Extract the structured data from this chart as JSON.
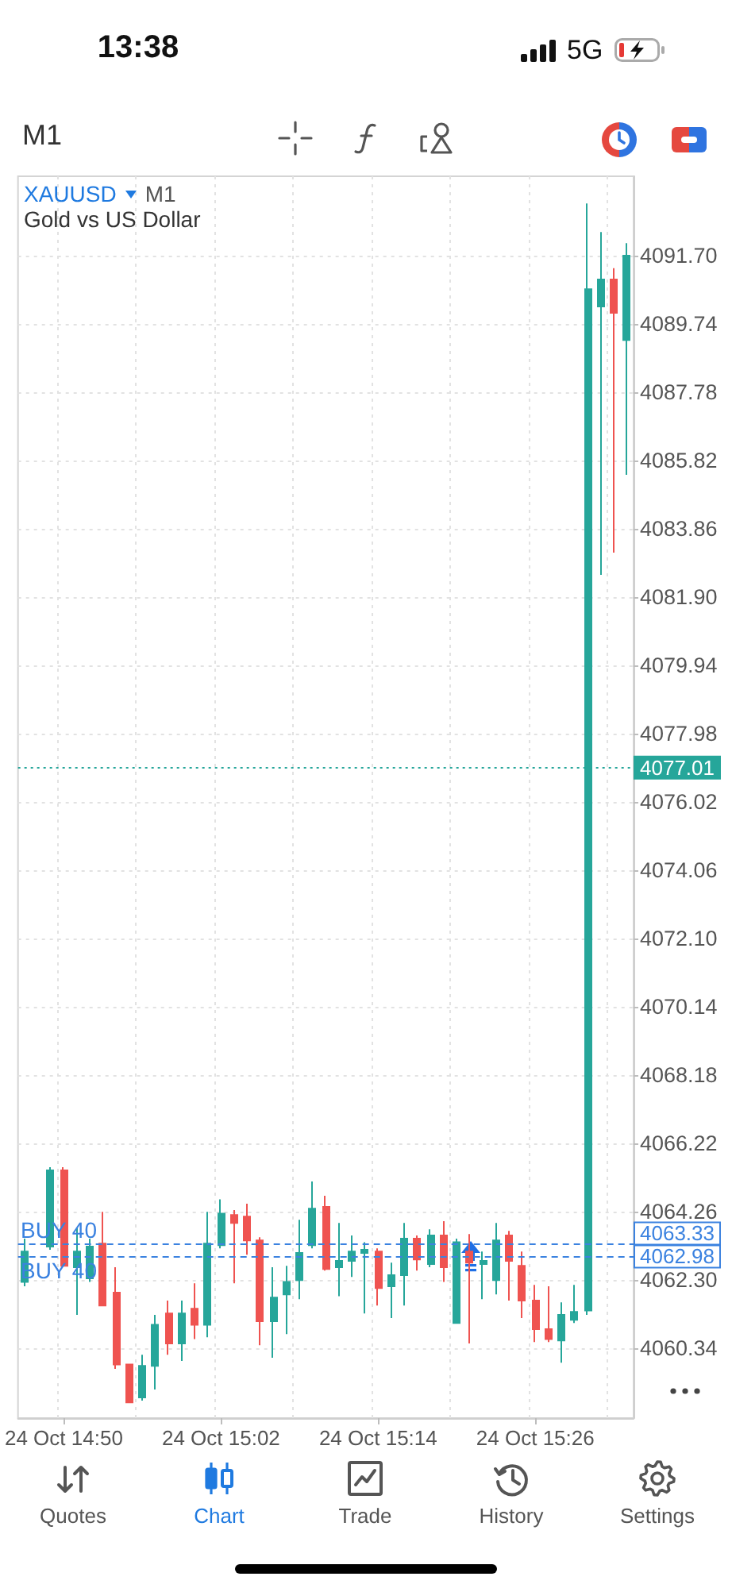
{
  "chart_data": {
    "type": "candlestick",
    "title": "XAUUSD",
    "subtitle": "Gold vs US Dollar",
    "categories": [
      null,
      null,
      null,
      "24 Oct 14:50",
      null,
      null,
      null,
      null,
      null,
      null,
      null,
      null,
      null,
      null,
      null,
      "24 Oct 15:02",
      null,
      null,
      null,
      null,
      null,
      null,
      null,
      null,
      null,
      null,
      null,
      "24 Oct 15:14",
      null,
      null,
      null,
      null,
      null,
      null,
      null,
      null,
      null,
      null,
      null,
      "24 Oct 15:26",
      null,
      null,
      null,
      null,
      null,
      null,
      null
    ],
    "ohlc": [
      [
        4062.25,
        4063.49,
        4062.12,
        4063.12
      ],
      null,
      [
        4063.26,
        4065.54,
        4063.17,
        4065.45
      ],
      [
        4065.45,
        4065.54,
        4062.71,
        4062.71
      ],
      [
        4062.67,
        4063.8,
        4061.3,
        4063.12
      ],
      [
        4062.35,
        4063.49,
        4062.25,
        4063.26
      ],
      [
        4063.35,
        4064.26,
        4061.57,
        4061.57
      ],
      [
        4061.94,
        4062.67,
        4059.75,
        4059.88
      ],
      [
        4059.88,
        4059.88,
        4058.79,
        4058.79
      ],
      [
        4058.93,
        4060.16,
        4058.84,
        4059.84
      ],
      [
        4059.84,
        4061.3,
        4059.16,
        4061.02
      ],
      [
        4061.34,
        4061.71,
        4060.16,
        4060.48
      ],
      [
        4060.48,
        4061.71,
        4059.98,
        4061.34
      ],
      [
        4061.48,
        4062.21,
        4060.61,
        4061.02
      ],
      [
        4061.02,
        4064.26,
        4060.66,
        4063.35
      ],
      [
        4063.3,
        4064.62,
        4063.21,
        4064.21
      ],
      [
        4064.17,
        4064.31,
        4062.21,
        4063.94
      ],
      [
        4064.12,
        4064.49,
        4063.03,
        4063.44
      ],
      [
        4063.44,
        4063.53,
        4060.43,
        4061.12
      ],
      [
        4061.12,
        4062.67,
        4060.07,
        4061.8
      ],
      [
        4061.89,
        4062.71,
        4060.75,
        4062.25
      ],
      [
        4062.3,
        4064.03,
        4061.75,
        4063.08
      ],
      [
        4063.3,
        4065.13,
        4063.21,
        4064.35
      ],
      [
        4064.4,
        4064.72,
        4062.57,
        4062.62
      ],
      [
        4062.67,
        4063.94,
        4061.84,
        4062.85
      ],
      [
        4062.85,
        4063.58,
        4062.39,
        4063.12
      ],
      [
        4063.08,
        4063.39,
        4061.34,
        4063.17
      ],
      [
        4063.12,
        4063.21,
        4061.57,
        4062.07
      ],
      [
        4062.12,
        4062.8,
        4061.21,
        4062.44
      ],
      [
        4062.44,
        4063.94,
        4061.57,
        4063.49
      ],
      [
        4063.49,
        4063.58,
        4062.57,
        4062.89
      ],
      [
        4062.76,
        4063.76,
        4062.67,
        4063.58
      ],
      [
        4063.58,
        4063.99,
        4062.25,
        4062.67
      ],
      [
        4061.07,
        4063.49,
        4061.07,
        4063.39
      ],
      [
        4063.12,
        4063.62,
        4060.48,
        4062.8
      ],
      [
        4062.76,
        4063.12,
        4061.75,
        4062.85
      ],
      [
        4062.3,
        4063.94,
        4061.89,
        4063.44
      ],
      [
        4063.58,
        4063.71,
        4061.71,
        4062.85
      ],
      [
        4062.71,
        4063.12,
        4061.21,
        4061.71
      ],
      [
        4061.71,
        4062.16,
        4060.52,
        4060.89
      ],
      [
        4060.89,
        4062.12,
        4060.52,
        4060.61
      ],
      [
        4060.57,
        4061.66,
        4059.93,
        4061.3
      ],
      [
        4061.16,
        4062.16,
        4061.07,
        4061.39
      ],
      [
        4061.43,
        4093.2,
        4061.3,
        4090.74
      ],
      [
        4090.24,
        4092.38,
        4082.54,
        4091.02
      ],
      [
        4091.02,
        4091.34,
        4083.18,
        4090.06
      ],
      [
        4089.28,
        4092.06,
        4085.41,
        4091.7
      ]
    ],
    "colors": [
      "#26a69a",
      null,
      "#26a69a",
      "#ef5350",
      "#26a69a",
      "#26a69a",
      "#ef5350",
      "#ef5350",
      "#ef5350",
      "#26a69a",
      "#26a69a",
      "#ef5350",
      "#26a69a",
      "#ef5350",
      "#26a69a",
      "#26a69a",
      "#ef5350",
      "#ef5350",
      "#ef5350",
      "#26a69a",
      "#26a69a",
      "#26a69a",
      "#26a69a",
      "#ef5350",
      "#26a69a",
      "#26a69a",
      "#26a69a",
      "#ef5350",
      "#26a69a",
      "#26a69a",
      "#ef5350",
      "#26a69a",
      "#ef5350",
      "#26a69a",
      "#ef5350",
      "#26a69a",
      "#26a69a",
      "#ef5350",
      "#ef5350",
      "#ef5350",
      "#ef5350",
      "#26a69a",
      "#26a69a",
      "#26a69a",
      "#26a69a",
      "#ef5350",
      "#26a69a"
    ],
    "ylim": [
      4058.34,
      4093.98
    ],
    "yticks": [
      4060.34,
      {
        "value": 4062.3,
        "label": "4062.30"
      },
      4064.26,
      4066.22,
      4068.18,
      4070.14,
      {
        "value": 4072.1,
        "label": "4072.10"
      },
      4074.06,
      4076.02,
      4077.98,
      4079.94,
      {
        "value": 4081.9,
        "label": "4081.90"
      },
      4083.86,
      4085.82,
      4087.78,
      4089.74,
      {
        "value": 4091.7,
        "label": "4091.70"
      }
    ],
    "grid": true,
    "ref_lines": [
      {
        "axis": "y",
        "value": 4063.33,
        "label": "4063.33",
        "color": "#3b82e0",
        "line_style": "dashed"
      },
      {
        "axis": "y",
        "value": 4062.98,
        "label": "4062.98",
        "color": "#3b82e0",
        "line_style": "dashed"
      },
      {
        "axis": "y",
        "value": 4077.01,
        "label": "4077.01",
        "color": "#26a69a",
        "line_style": "dotted"
      }
    ],
    "annotations": [
      "13:38",
      "5G",
      "M1",
      "M1",
      "Quotes",
      "Chart",
      "Trade",
      "History",
      "Settings",
      "BUY 40",
      "BUY 40"
    ]
  }
}
